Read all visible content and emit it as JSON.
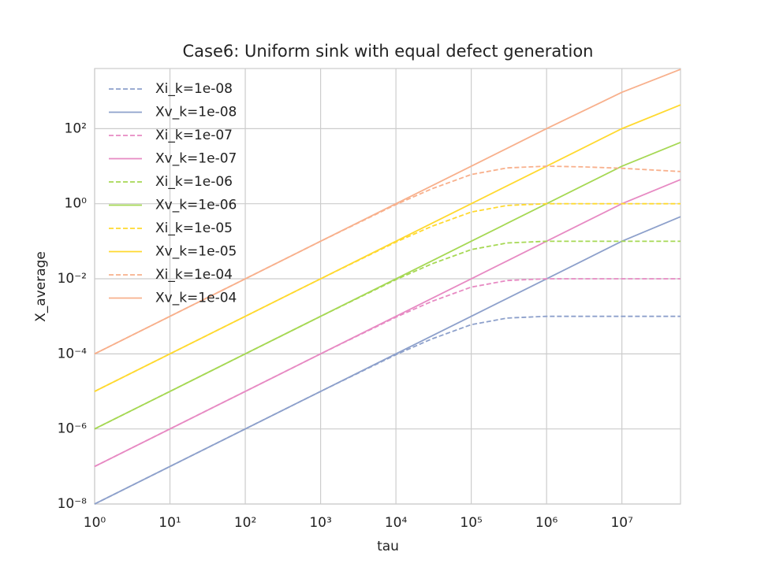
{
  "chart_data": {
    "type": "line",
    "title": "Case6: Uniform sink with equal defect generation",
    "x_label": "tau",
    "y_label": "X_average",
    "xscale": "log",
    "yscale": "log",
    "grid": true,
    "legend": "upper left",
    "xlim": [
      1,
      60000000
    ],
    "ylim": [
      1e-08,
      4000
    ],
    "xticks": [
      {
        "value": 1,
        "label": "10⁰"
      },
      {
        "value": 10,
        "label": "10¹"
      },
      {
        "value": 100,
        "label": "10²"
      },
      {
        "value": 1000,
        "label": "10³"
      },
      {
        "value": 10000,
        "label": "10⁴"
      },
      {
        "value": 100000,
        "label": "10⁵"
      },
      {
        "value": 1000000,
        "label": "10⁶"
      },
      {
        "value": 10000000,
        "label": "10⁷"
      }
    ],
    "yticks": [
      {
        "value": 1e-08,
        "label": "10⁻⁸"
      },
      {
        "value": 1e-06,
        "label": "10⁻⁶"
      },
      {
        "value": 0.0001,
        "label": "10⁻⁴"
      },
      {
        "value": 0.01,
        "label": "10⁻²"
      },
      {
        "value": 1,
        "label": "10⁰"
      },
      {
        "value": 100,
        "label": "10²"
      }
    ],
    "x": [
      1,
      10,
      100,
      1000,
      10000,
      30000,
      100000,
      300000,
      1000000,
      3000000,
      10000000,
      60000000
    ],
    "series": [
      {
        "name": "Xi_k=1e-08",
        "color": "#8da0cb",
        "linestyle": "dashed",
        "values": [
          1e-08,
          1e-07,
          1e-06,
          1e-05,
          9.5e-05,
          0.00025,
          0.0006,
          0.0009,
          0.001,
          0.001,
          0.001,
          0.001
        ]
      },
      {
        "name": "Xv_k=1e-08",
        "color": "#8da0cb",
        "linestyle": "solid",
        "values": [
          1e-08,
          1e-07,
          1e-06,
          1e-05,
          0.0001,
          0.0003,
          0.001,
          0.003,
          0.01,
          0.03,
          0.1,
          0.45
        ]
      },
      {
        "name": "Xi_k=1e-07",
        "color": "#e78ac3",
        "linestyle": "dashed",
        "values": [
          1e-07,
          1e-06,
          1e-05,
          0.0001,
          0.00095,
          0.0025,
          0.006,
          0.009,
          0.01,
          0.01,
          0.01,
          0.01
        ]
      },
      {
        "name": "Xv_k=1e-07",
        "color": "#e78ac3",
        "linestyle": "solid",
        "values": [
          1e-07,
          1e-06,
          1e-05,
          0.0001,
          0.001,
          0.003,
          0.01,
          0.03,
          0.1,
          0.3,
          1,
          4.4
        ]
      },
      {
        "name": "Xi_k=1e-06",
        "color": "#a6d854",
        "linestyle": "dashed",
        "values": [
          1e-06,
          1e-05,
          0.0001,
          0.001,
          0.0095,
          0.025,
          0.06,
          0.09,
          0.1,
          0.1,
          0.1,
          0.1
        ]
      },
      {
        "name": "Xv_k=1e-06",
        "color": "#a6d854",
        "linestyle": "solid",
        "values": [
          1e-06,
          1e-05,
          0.0001,
          0.001,
          0.01,
          0.03,
          0.1,
          0.3,
          1,
          3,
          10,
          43
        ]
      },
      {
        "name": "Xi_k=1e-05",
        "color": "#ffd92f",
        "linestyle": "dashed",
        "values": [
          1e-05,
          0.0001,
          0.001,
          0.01,
          0.095,
          0.25,
          0.6,
          0.9,
          1,
          1,
          1,
          1
        ]
      },
      {
        "name": "Xv_k=1e-05",
        "color": "#ffd92f",
        "linestyle": "solid",
        "values": [
          1e-05,
          0.0001,
          0.001,
          0.01,
          0.1,
          0.3,
          1,
          3,
          10,
          30,
          100,
          430
        ]
      },
      {
        "name": "Xi_k=1e-04",
        "color": "#f8b08c",
        "linestyle": "dashed",
        "values": [
          0.0001,
          0.001,
          0.01,
          0.1,
          0.95,
          2.5,
          6,
          9,
          10,
          9.6,
          8.8,
          7.2
        ]
      },
      {
        "name": "Xv_k=1e-04",
        "color": "#f8b08c",
        "linestyle": "solid",
        "values": [
          0.0001,
          0.001,
          0.01,
          0.1,
          1,
          3,
          10,
          30,
          100,
          290,
          930,
          3800
        ]
      }
    ]
  }
}
